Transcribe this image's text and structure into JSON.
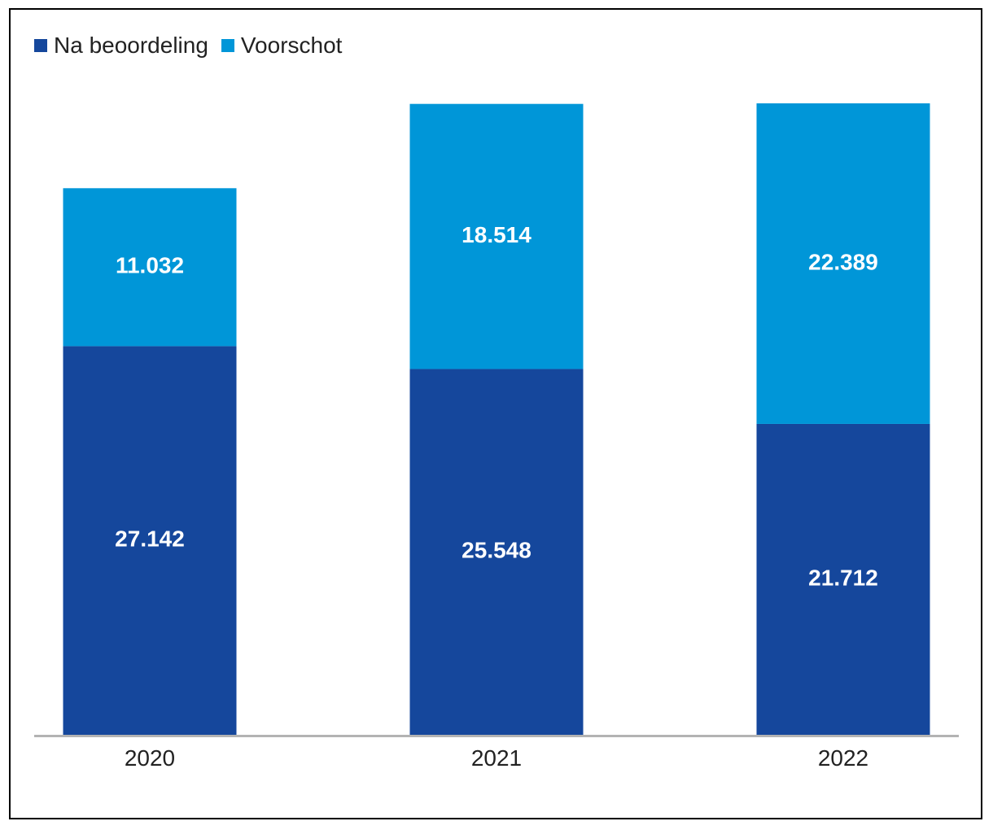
{
  "chart_data": {
    "type": "bar",
    "stacked": true,
    "categories": [
      "2020",
      "2021",
      "2022"
    ],
    "series": [
      {
        "name": "Na beoordeling",
        "values": [
          27142,
          25548,
          21712
        ],
        "labels": [
          "27.142",
          "25.548",
          "21.712"
        ],
        "color": "#15479c"
      },
      {
        "name": "Voorschot",
        "values": [
          11032,
          18514,
          22389
        ],
        "labels": [
          "11.032",
          "18.514",
          "22.389"
        ],
        "color": "#0096d8"
      }
    ],
    "legend_position": "top-left",
    "grid": false,
    "ylim": [
      0,
      44101
    ]
  }
}
